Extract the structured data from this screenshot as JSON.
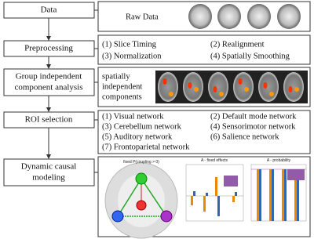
{
  "steps": [
    {
      "label": [
        "Data"
      ],
      "details": [
        "Raw Data"
      ]
    },
    {
      "label": [
        "Preprocessing"
      ],
      "details": [
        "(1) Slice Timing",
        "(2) Realignment",
        "(3) Normalization",
        "(4) Spatially Smoothing"
      ]
    },
    {
      "label": [
        "Group independent",
        "component analysis"
      ],
      "details": [
        "spatially",
        "independent",
        "components"
      ]
    },
    {
      "label": [
        "ROI selection"
      ],
      "details": [
        "(1) Visual network",
        "(2) Default mode network",
        "(3) Cerebellum network",
        "(4) Sensorimotor network",
        "(5) Auditory network",
        "(6) Salience network",
        "(7) Frontoparietal network"
      ]
    },
    {
      "label": [
        "Dynamic causal",
        "modeling"
      ],
      "details": [
        "fixed P(coupling > 0)",
        "A - fixed effects",
        "A - probability"
      ]
    }
  ]
}
